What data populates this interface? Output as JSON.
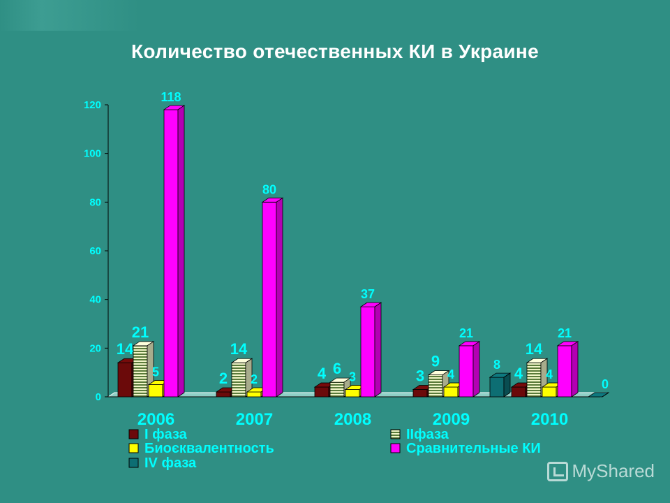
{
  "title": "Количество отечественных КИ в Украине",
  "watermark": "MyShared",
  "chart_data": {
    "type": "bar",
    "title": "Количество отечественных КИ в Украине",
    "categories": [
      "2006",
      "2007",
      "2008",
      "2009",
      "2010"
    ],
    "series": [
      {
        "name": "I фаза",
        "values": [
          14,
          2,
          4,
          3,
          4
        ],
        "color": "#6b0a0a",
        "labels": [
          "14",
          "2",
          "4",
          "3",
          "4"
        ],
        "label_color": "#00ffff"
      },
      {
        "name": "IIфаза",
        "values": [
          21,
          14,
          6,
          9,
          14
        ],
        "color": "#f0f5c8",
        "labels": [
          "21",
          "14",
          "6",
          "9",
          "14"
        ],
        "label_color": "#00ffff"
      },
      {
        "name": "Биоєквалентность",
        "values": [
          5,
          2,
          3,
          4,
          4
        ],
        "color": "#ffff00",
        "labels": [
          "5",
          "2",
          "3",
          "4",
          "4"
        ],
        "label_color": "#00ffff"
      },
      {
        "name": "Сравнительные КИ",
        "values": [
          118,
          80,
          37,
          21,
          21
        ],
        "color": "#ff00ff",
        "labels": [
          "118",
          "80",
          "37",
          "21",
          "21"
        ],
        "label_color": "#00ffff"
      },
      {
        "name": "IV фаза",
        "values": [
          null,
          null,
          null,
          8,
          0
        ],
        "color": "#0d6e73",
        "labels": [
          "",
          "",
          "",
          "8",
          "0"
        ],
        "label_color": "#00ffff"
      }
    ],
    "ylim": [
      0,
      120
    ],
    "yticks": [
      "0",
      "20",
      "40",
      "60",
      "80",
      "100",
      "120"
    ],
    "legend_position": "bottom",
    "axis_color": "#00ffff"
  }
}
